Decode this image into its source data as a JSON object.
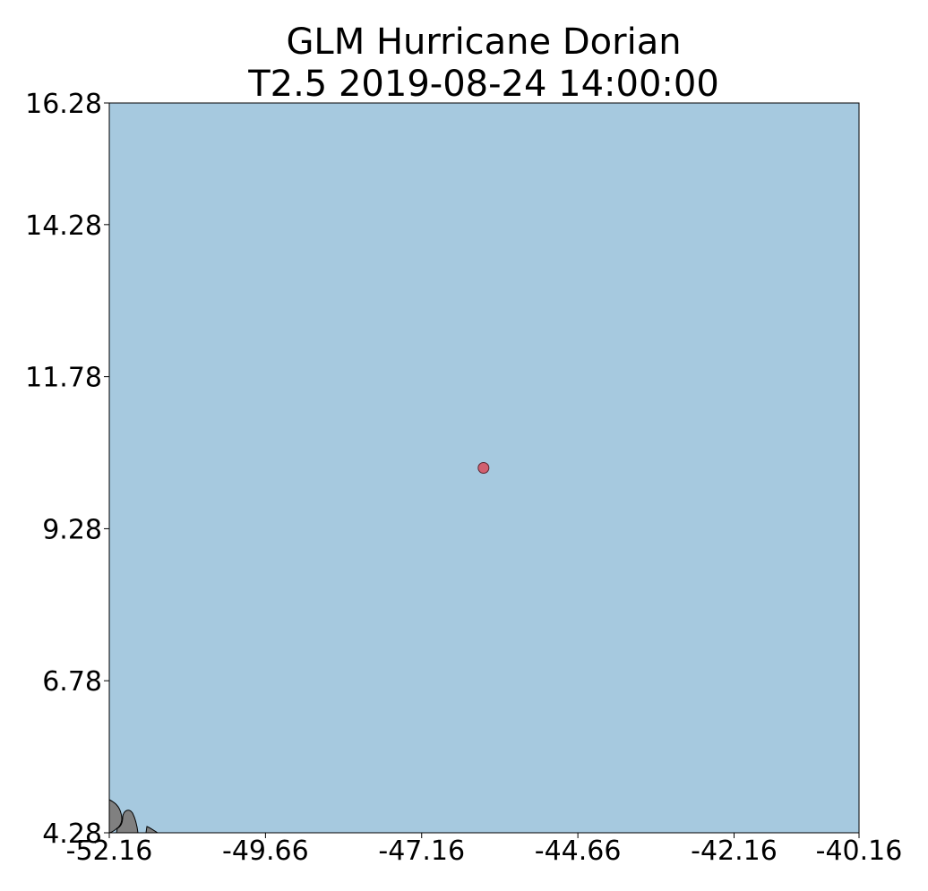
{
  "chart_data": {
    "type": "scatter",
    "title_line1": "GLM Hurricane Dorian",
    "title_line2": "T2.5 2019-08-24 14:00:00",
    "xlim": [
      -52.16,
      -40.16
    ],
    "ylim": [
      4.28,
      16.28
    ],
    "xticks": [
      "-52.16",
      "-49.66",
      "-47.16",
      "-44.66",
      "-42.16",
      "-40.16"
    ],
    "xtick_values": [
      -52.16,
      -49.66,
      -47.16,
      -44.66,
      -42.16,
      -40.16
    ],
    "yticks": [
      "16.28",
      "14.28",
      "11.78",
      "9.28",
      "6.78",
      "4.28"
    ],
    "ytick_values": [
      16.28,
      14.28,
      11.78,
      9.28,
      6.78,
      4.28
    ],
    "points": [
      {
        "lon": -46.17,
        "lat": 10.28
      }
    ],
    "grid": false,
    "colors": {
      "ocean": "#a6c9df",
      "land": "#808080",
      "point": "#d26070",
      "coast": "#000000"
    }
  }
}
